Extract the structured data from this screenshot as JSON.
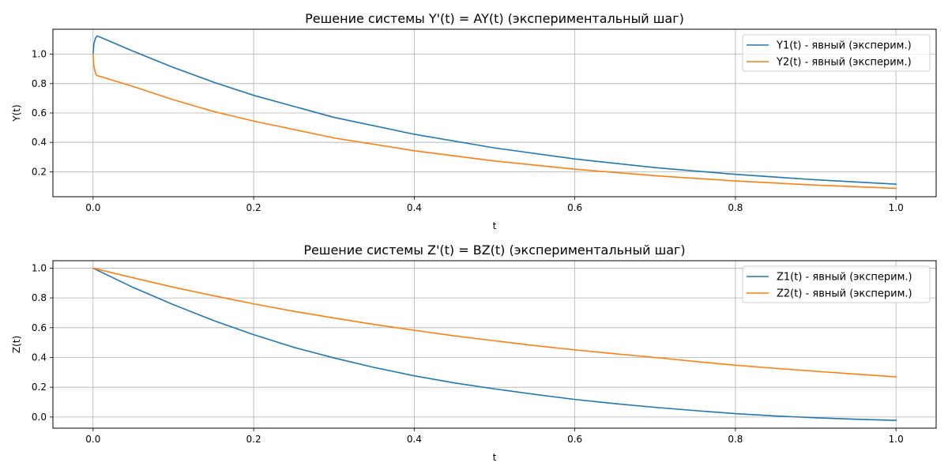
{
  "chart_data": [
    {
      "type": "line",
      "title": "Решение системы Y'(t) = AY(t) (экспериментальный шаг)",
      "xlabel": "t",
      "ylabel": "Y(t)",
      "xlim": [
        -0.05,
        1.05
      ],
      "ylim": [
        0.03,
        1.17
      ],
      "xticks": [
        0.0,
        0.2,
        0.4,
        0.6,
        0.8,
        1.0
      ],
      "xtick_labels": [
        "0.0",
        "0.2",
        "0.4",
        "0.6",
        "0.8",
        "1.0"
      ],
      "yticks": [
        0.2,
        0.4,
        0.6,
        0.8,
        1.0
      ],
      "ytick_labels": [
        "0.2",
        "0.4",
        "0.6",
        "0.8",
        "1.0"
      ],
      "grid": true,
      "legend_position": "top-right",
      "series": [
        {
          "name": "Y1(t) - явный (эксперим.)",
          "color": "#1f77b4",
          "x": [
            0,
            0.001,
            0.003,
            0.005,
            0.05,
            0.1,
            0.15,
            0.2,
            0.3,
            0.4,
            0.5,
            0.6,
            0.7,
            0.8,
            0.9,
            1.0
          ],
          "y": [
            1.0,
            1.07,
            1.11,
            1.125,
            1.02,
            0.91,
            0.81,
            0.72,
            0.57,
            0.455,
            0.362,
            0.287,
            0.228,
            0.182,
            0.145,
            0.115
          ]
        },
        {
          "name": "Y2(t) - явный (эксперим.)",
          "color": "#ff7f0e",
          "x": [
            0,
            0.001,
            0.003,
            0.005,
            0.05,
            0.1,
            0.15,
            0.2,
            0.3,
            0.4,
            0.5,
            0.6,
            0.7,
            0.8,
            0.9,
            1.0
          ],
          "y": [
            1.0,
            0.92,
            0.87,
            0.855,
            0.78,
            0.69,
            0.61,
            0.545,
            0.43,
            0.343,
            0.273,
            0.217,
            0.173,
            0.137,
            0.109,
            0.087
          ]
        }
      ]
    },
    {
      "type": "line",
      "title": "Решение системы Z'(t) = BZ(t) (экспериментальный шаг)",
      "xlabel": "t",
      "ylabel": "Z(t)",
      "xlim": [
        -0.05,
        1.05
      ],
      "ylim": [
        -0.075,
        1.05
      ],
      "xticks": [
        0.0,
        0.2,
        0.4,
        0.6,
        0.8,
        1.0
      ],
      "xtick_labels": [
        "0.0",
        "0.2",
        "0.4",
        "0.6",
        "0.8",
        "1.0"
      ],
      "yticks": [
        0.0,
        0.2,
        0.4,
        0.6,
        0.8,
        1.0
      ],
      "ytick_labels": [
        "0.0",
        "0.2",
        "0.4",
        "0.6",
        "0.8",
        "1.0"
      ],
      "grid": true,
      "legend_position": "top-right",
      "series": [
        {
          "name": "Z1(t) - явный (эксперим.)",
          "color": "#1f77b4",
          "x": [
            0,
            0.05,
            0.1,
            0.15,
            0.2,
            0.25,
            0.3,
            0.35,
            0.4,
            0.45,
            0.5,
            0.55,
            0.6,
            0.65,
            0.7,
            0.75,
            0.8,
            0.85,
            0.9,
            0.95,
            1.0
          ],
          "y": [
            1.0,
            0.87,
            0.755,
            0.648,
            0.553,
            0.468,
            0.397,
            0.333,
            0.277,
            0.229,
            0.189,
            0.152,
            0.118,
            0.09,
            0.065,
            0.043,
            0.023,
            0.007,
            -0.005,
            -0.015,
            -0.023
          ]
        },
        {
          "name": "Z2(t) - явный (эксперим.)",
          "color": "#ff7f0e",
          "x": [
            0,
            0.05,
            0.1,
            0.15,
            0.2,
            0.25,
            0.3,
            0.35,
            0.4,
            0.45,
            0.5,
            0.55,
            0.6,
            0.65,
            0.7,
            0.75,
            0.8,
            0.85,
            0.9,
            0.95,
            1.0
          ],
          "y": [
            1.0,
            0.935,
            0.872,
            0.815,
            0.76,
            0.71,
            0.665,
            0.622,
            0.583,
            0.545,
            0.512,
            0.48,
            0.451,
            0.425,
            0.4,
            0.373,
            0.348,
            0.327,
            0.307,
            0.288,
            0.27
          ]
        }
      ]
    }
  ]
}
